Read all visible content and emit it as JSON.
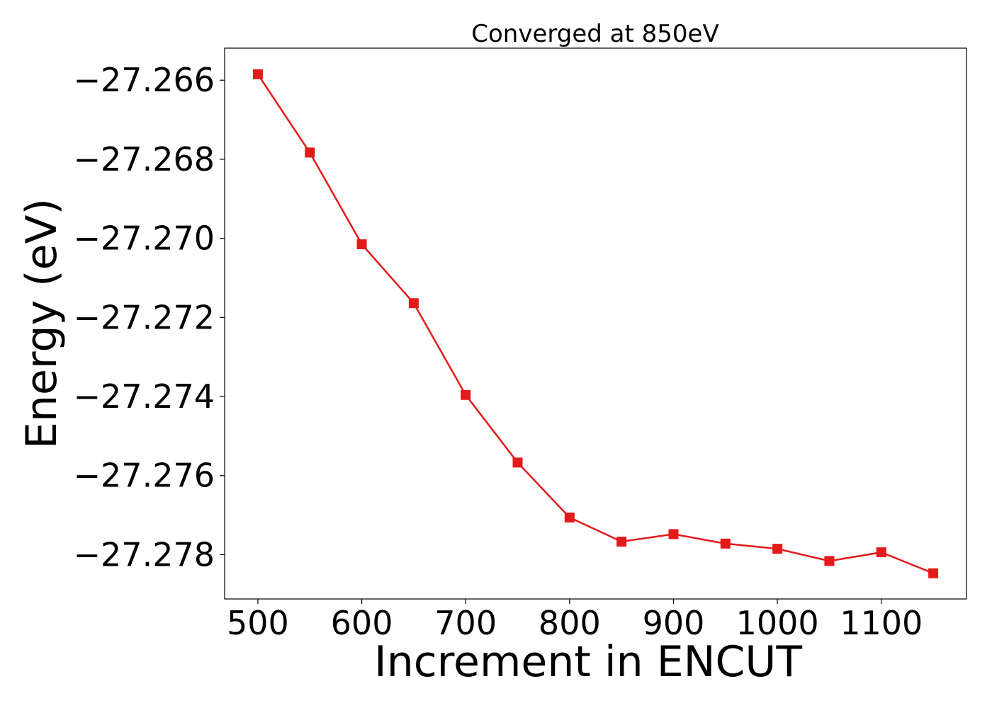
{
  "chart_data": {
    "type": "line",
    "title": "Converged at 850eV",
    "xlabel": "Increment in ENCUT",
    "ylabel": "Energy (eV)",
    "x": [
      500,
      550,
      600,
      650,
      700,
      750,
      800,
      850,
      900,
      950,
      1000,
      1050,
      1100,
      1150
    ],
    "series": [
      {
        "values": [
          -27.26585,
          -27.26783,
          -27.27015,
          -27.27164,
          -27.27396,
          -27.27567,
          -27.27706,
          -27.27767,
          -27.27748,
          -27.27772,
          -27.27785,
          -27.27816,
          -27.27794,
          -27.27847
        ],
        "color": "#e31a1c",
        "marker": "square"
      }
    ],
    "xlim": [
      468,
      1182
    ],
    "ylim": [
      -27.27912,
      -27.26519
    ],
    "xticks": [
      500,
      600,
      700,
      800,
      900,
      1000,
      1100
    ],
    "xtick_labels": [
      "500",
      "600",
      "700",
      "800",
      "900",
      "1000",
      "1100"
    ],
    "yticks": [
      -27.266,
      -27.268,
      -27.27,
      -27.272,
      -27.274,
      -27.276,
      -27.278
    ],
    "ytick_labels": [
      "−27.266",
      "−27.268",
      "−27.270",
      "−27.272",
      "−27.274",
      "−27.276",
      "−27.278"
    ],
    "grid": false,
    "legend": "none"
  }
}
